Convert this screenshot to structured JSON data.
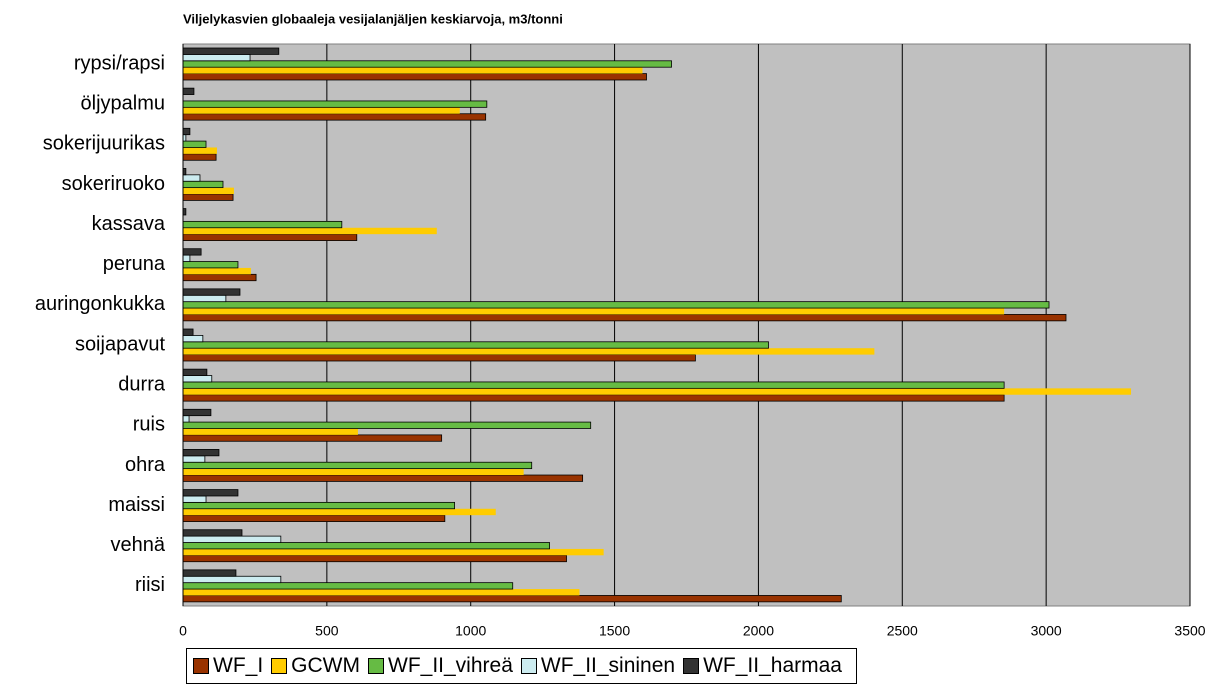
{
  "chart_data": {
    "type": "bar",
    "orientation": "horizontal",
    "title": "Viljelykasvien globaaleja vesijalanjäljen keskiarvoja, m3/tonni",
    "categories": [
      "rypsi/rapsi",
      "öljypalmu",
      "sokerijuurikas",
      "sokeriruoko",
      "kassava",
      "peruna",
      "auringonkukka",
      "soijapavut",
      "durra",
      "ruis",
      "ohra",
      "maissi",
      "vehnä",
      "riisi"
    ],
    "series": [
      {
        "name": "WF_I",
        "color": "#993300",
        "values": [
          1611,
          1052,
          115,
          174,
          604,
          254,
          3069,
          1781,
          2854,
          899,
          1389,
          910,
          1333,
          2288
        ]
      },
      {
        "name": "GCWM",
        "color": "#ffcc00",
        "values": [
          1597,
          962,
          118,
          177,
          882,
          236,
          2854,
          2403,
          3295,
          608,
          1184,
          1087,
          1462,
          1378
        ]
      },
      {
        "name": "WF_II_vihreä",
        "color": "#66bb44",
        "values": [
          1698,
          1056,
          80,
          139,
          552,
          191,
          3010,
          2035,
          2854,
          1417,
          1212,
          944,
          1274,
          1146
        ]
      },
      {
        "name": "WF_II_sininen",
        "color": "#ccecf0",
        "values": [
          233,
          0,
          10,
          59,
          0,
          24,
          149,
          69,
          100,
          21,
          76,
          80,
          340,
          340
        ]
      },
      {
        "name": "WF_II_harmaa",
        "color": "#333333",
        "values": [
          333,
          38,
          24,
          10,
          10,
          63,
          198,
          35,
          83,
          97,
          125,
          191,
          205,
          184
        ]
      }
    ],
    "xlim": [
      0,
      3500
    ],
    "xticks": [
      0,
      500,
      1000,
      1500,
      2000,
      2500,
      3000,
      3500
    ],
    "grid": true,
    "legend": "bottom"
  }
}
